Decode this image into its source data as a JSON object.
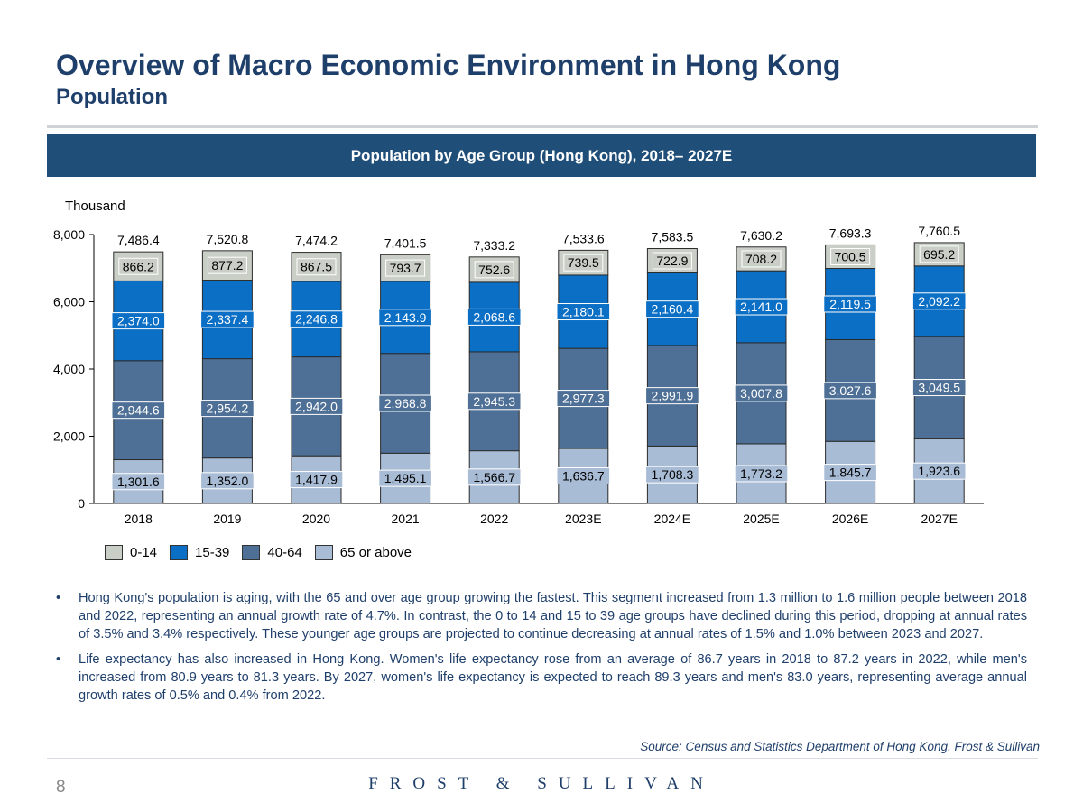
{
  "header": {
    "title": "Overview of Macro Economic Environment in Hong Kong",
    "subtitle": "Population"
  },
  "chart_banner": "Population by Age Group (Hong Kong), 2018– 2027E",
  "chart_data": {
    "type": "bar",
    "stacked": true,
    "title": "Population by Age Group (Hong Kong), 2018– 2027E",
    "ylabel": "Thousand",
    "xlabel": "",
    "ylim": [
      0,
      8000
    ],
    "yticks": [
      0,
      2000,
      4000,
      6000,
      8000
    ],
    "ytick_labels": [
      "0",
      "2,000",
      "4,000",
      "6,000",
      "8,000"
    ],
    "categories": [
      "2018",
      "2019",
      "2020",
      "2021",
      "2022",
      "2023E",
      "2024E",
      "2025E",
      "2026E",
      "2027E"
    ],
    "totals": [
      7486.4,
      7520.8,
      7474.2,
      7401.5,
      7333.2,
      7533.6,
      7583.5,
      7630.2,
      7693.3,
      7760.5
    ],
    "total_labels": [
      "7,486.4",
      "7,520.8",
      "7,474.2",
      "7,401.5",
      "7,333.2",
      "7,533.6",
      "7,583.5",
      "7,630.2",
      "7,693.3",
      "7,760.5"
    ],
    "series": [
      {
        "name": "65 or above",
        "color": "#a8bcd6",
        "label_bg": "#a8bcd6",
        "label_color": "#000000",
        "values": [
          1301.6,
          1352.0,
          1417.9,
          1495.1,
          1566.7,
          1636.7,
          1708.3,
          1773.2,
          1845.7,
          1923.6
        ],
        "labels": [
          "1,301.6",
          "1,352.0",
          "1,417.9",
          "1,495.1",
          "1,566.7",
          "1,636.7",
          "1,708.3",
          "1,773.2",
          "1,845.7",
          "1,923.6"
        ]
      },
      {
        "name": "40-64",
        "color": "#4f7096",
        "label_bg": "#4f7096",
        "label_color": "#ffffff",
        "values": [
          2944.6,
          2954.2,
          2942.0,
          2968.8,
          2945.3,
          2977.3,
          2991.9,
          3007.8,
          3027.6,
          3049.5
        ],
        "labels": [
          "2,944.6",
          "2,954.2",
          "2,942.0",
          "2,968.8",
          "2,945.3",
          "2,977.3",
          "2,991.9",
          "3,007.8",
          "3,027.6",
          "3,049.5"
        ]
      },
      {
        "name": "15-39",
        "color": "#0b6fc5",
        "label_bg": "#0b6fc5",
        "label_color": "#ffffff",
        "values": [
          2374.0,
          2337.4,
          2246.8,
          2143.9,
          2068.6,
          2180.1,
          2160.4,
          2141.0,
          2119.5,
          2092.2
        ],
        "labels": [
          "2,374.0",
          "2,337.4",
          "2,246.8",
          "2,143.9",
          "2,068.6",
          "2,180.1",
          "2,160.4",
          "2,141.0",
          "2,119.5",
          "2,092.2"
        ]
      },
      {
        "name": "0-14",
        "color": "#c9cfc7",
        "label_bg": "#c9cfc7",
        "label_color": "#000000",
        "values": [
          866.2,
          877.2,
          867.5,
          793.7,
          752.6,
          739.5,
          722.9,
          708.2,
          700.5,
          695.2
        ],
        "labels": [
          "866.2",
          "877.2",
          "867.5",
          "793.7",
          "752.6",
          "739.5",
          "722.9",
          "708.2",
          "700.5",
          "695.2"
        ]
      }
    ],
    "legend": [
      "0-14",
      "15-39",
      "40-64",
      "65 or above"
    ],
    "legend_colors": [
      "#c9cfc7",
      "#0b6fc5",
      "#4f7096",
      "#a8bcd6"
    ]
  },
  "notes": [
    "Hong Kong's population is aging, with the 65 and over age group growing the fastest. This segment increased from 1.3 million to 1.6 million people between 2018 and 2022, representing an annual growth rate of 4.7%. In contrast, the 0 to 14 and 15 to 39 age groups have declined during this period, dropping at annual rates of 3.5% and 3.4% respectively. These younger age groups are projected to continue decreasing at annual rates of 1.5% and 1.0% between 2023 and 2027.",
    "Life expectancy has also increased in Hong Kong. Women's life expectancy rose from an average of 86.7 years in 2018 to 87.2 years in 2022, while men's increased from 80.9 years to 81.3 years. By 2027, women's life expectancy is expected to reach 89.3 years and men's 83.0 years, representing average annual growth rates of 0.5% and 0.4% from 2022."
  ],
  "source": "Source: Census and Statistics Department of Hong Kong, Frost & Sullivan",
  "footer": {
    "page_number": "8",
    "brand": "FROST & SULLIVAN"
  }
}
